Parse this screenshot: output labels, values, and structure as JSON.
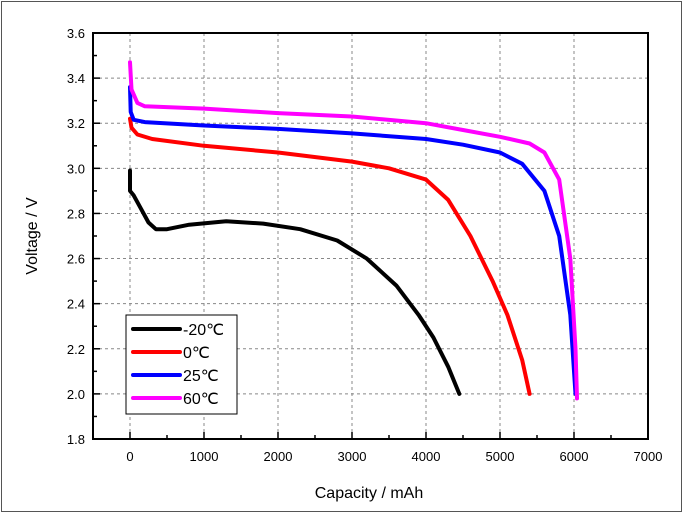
{
  "chart_data": {
    "type": "line",
    "title": "",
    "xlabel": "Capacity / mAh",
    "ylabel": "Voltage / V",
    "xlim": [
      -500,
      7000
    ],
    "ylim": [
      1.8,
      3.6
    ],
    "xticks": [
      0,
      1000,
      2000,
      3000,
      4000,
      5000,
      6000,
      7000
    ],
    "xtick_labels": [
      "0",
      "1000",
      "2000",
      "3000",
      "4000",
      "5000",
      "6000",
      "7000"
    ],
    "yticks": [
      1.8,
      2.0,
      2.2,
      2.4,
      2.6,
      2.8,
      3.0,
      3.2,
      3.4,
      3.6
    ],
    "ytick_labels": [
      "1.8",
      "2.0",
      "2.2",
      "2.4",
      "2.6",
      "2.8",
      "3.0",
      "3.2",
      "3.4",
      "3.6"
    ],
    "grid": true,
    "legend_position": "bottom-left",
    "series": [
      {
        "name": "-20℃",
        "color": "#000000",
        "points": [
          [
            0,
            2.99
          ],
          [
            0,
            2.9
          ],
          [
            50,
            2.88
          ],
          [
            150,
            2.82
          ],
          [
            250,
            2.76
          ],
          [
            350,
            2.73
          ],
          [
            500,
            2.73
          ],
          [
            800,
            2.75
          ],
          [
            1300,
            2.765
          ],
          [
            1800,
            2.755
          ],
          [
            2300,
            2.73
          ],
          [
            2800,
            2.68
          ],
          [
            3200,
            2.6
          ],
          [
            3600,
            2.48
          ],
          [
            3900,
            2.35
          ],
          [
            4100,
            2.25
          ],
          [
            4300,
            2.12
          ],
          [
            4450,
            2.0
          ]
        ]
      },
      {
        "name": "0℃",
        "color": "#ff0000",
        "points": [
          [
            0,
            3.22
          ],
          [
            20,
            3.18
          ],
          [
            100,
            3.15
          ],
          [
            300,
            3.13
          ],
          [
            1000,
            3.1
          ],
          [
            2000,
            3.07
          ],
          [
            3000,
            3.03
          ],
          [
            3500,
            3.0
          ],
          [
            4000,
            2.95
          ],
          [
            4300,
            2.86
          ],
          [
            4600,
            2.7
          ],
          [
            4900,
            2.5
          ],
          [
            5100,
            2.35
          ],
          [
            5300,
            2.15
          ],
          [
            5400,
            2.0
          ]
        ]
      },
      {
        "name": "25℃",
        "color": "#0000ff",
        "points": [
          [
            0,
            3.36
          ],
          [
            10,
            3.25
          ],
          [
            50,
            3.215
          ],
          [
            200,
            3.205
          ],
          [
            1000,
            3.19
          ],
          [
            2000,
            3.175
          ],
          [
            3000,
            3.155
          ],
          [
            4000,
            3.13
          ],
          [
            4500,
            3.105
          ],
          [
            5000,
            3.07
          ],
          [
            5300,
            3.02
          ],
          [
            5600,
            2.9
          ],
          [
            5800,
            2.7
          ],
          [
            5950,
            2.35
          ],
          [
            6020,
            2.0
          ]
        ]
      },
      {
        "name": "60℃",
        "color": "#ff00ff",
        "points": [
          [
            0,
            3.47
          ],
          [
            20,
            3.35
          ],
          [
            100,
            3.29
          ],
          [
            200,
            3.275
          ],
          [
            1000,
            3.265
          ],
          [
            2000,
            3.245
          ],
          [
            3000,
            3.23
          ],
          [
            4000,
            3.2
          ],
          [
            4500,
            3.17
          ],
          [
            5000,
            3.14
          ],
          [
            5400,
            3.11
          ],
          [
            5600,
            3.07
          ],
          [
            5800,
            2.95
          ],
          [
            5950,
            2.6
          ],
          [
            6020,
            2.2
          ],
          [
            6040,
            1.98
          ]
        ]
      }
    ]
  }
}
